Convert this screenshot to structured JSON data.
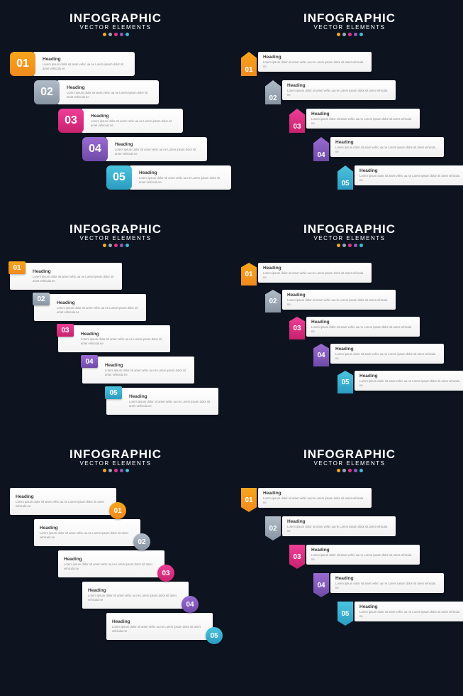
{
  "header": {
    "title": "INFOGRAPHIC",
    "subtitle": "VECTOR ELEMENTS"
  },
  "dot_colors": [
    "#f4a623",
    "#9aa7b5",
    "#e73289",
    "#8b5fbf",
    "#43b9d3"
  ],
  "background": "#0d1420",
  "item": {
    "heading": "Heading",
    "body": "Lorem ipsum dolor sit amet vehic ua ne Lorem ipsum dolor sit amet vehicula ne"
  },
  "steps": [
    {
      "num": "01",
      "color1": "#f7a51b",
      "color2": "#f08a1f"
    },
    {
      "num": "02",
      "color1": "#b0bcc8",
      "color2": "#8894a2"
    },
    {
      "num": "03",
      "color1": "#ef3f98",
      "color2": "#c7216d"
    },
    {
      "num": "04",
      "color1": "#9a6bd1",
      "color2": "#6f4aa8"
    },
    {
      "num": "05",
      "color1": "#4cc4df",
      "color2": "#2c9cc0"
    }
  ],
  "panels": [
    {
      "style": "A"
    },
    {
      "style": "B"
    },
    {
      "style": "C"
    },
    {
      "style": "D"
    },
    {
      "style": "E"
    },
    {
      "style": "F"
    }
  ],
  "fontsize": {
    "title": 17,
    "subtitle": 8,
    "heading": 6.5,
    "body": 4.2,
    "num_big": 16,
    "num_small": 10
  }
}
